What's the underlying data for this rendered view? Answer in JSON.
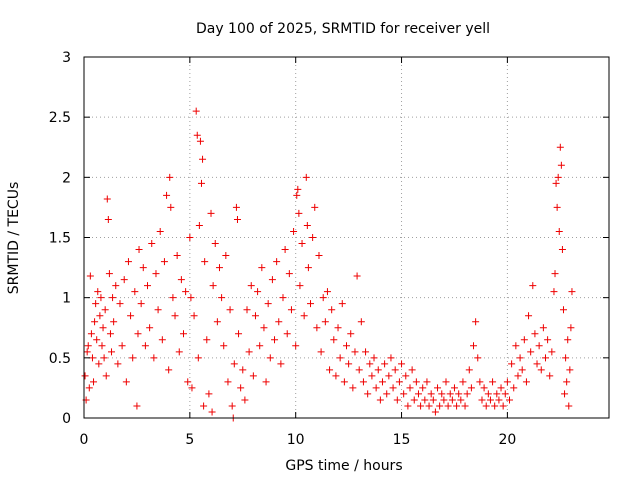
{
  "chart_data": {
    "type": "scatter",
    "title": "Day 100 of 2025, SRMTID for receiver yell",
    "xlabel": "GPS time / hours",
    "ylabel": "SRMTID / TECUs",
    "xlim": [
      0,
      24.8
    ],
    "ylim": [
      0,
      3
    ],
    "x_ticks": [
      0,
      5,
      10,
      15,
      20
    ],
    "x_tick_labels": [
      "0",
      "5",
      "10",
      "15",
      "20"
    ],
    "y_ticks": [
      0,
      0.5,
      1,
      1.5,
      2,
      2.5,
      3
    ],
    "y_tick_labels": [
      "0",
      "0.5",
      "1",
      "1.5",
      "2",
      "2.5",
      "3"
    ],
    "grid": true,
    "marker": "+",
    "color": "#ee0000",
    "series": [
      {
        "name": "SRMTID",
        "points": [
          [
            0.05,
            0.35
          ],
          [
            0.1,
            0.15
          ],
          [
            0.15,
            0.55
          ],
          [
            0.2,
            0.6
          ],
          [
            0.25,
            0.25
          ],
          [
            0.3,
            1.18
          ],
          [
            0.35,
            0.7
          ],
          [
            0.4,
            0.5
          ],
          [
            0.45,
            0.3
          ],
          [
            0.5,
            0.8
          ],
          [
            0.55,
            0.95
          ],
          [
            0.6,
            0.65
          ],
          [
            0.65,
            1.05
          ],
          [
            0.7,
            0.45
          ],
          [
            0.75,
            0.85
          ],
          [
            0.8,
            1.0
          ],
          [
            0.85,
            0.6
          ],
          [
            0.9,
            0.75
          ],
          [
            0.95,
            0.5
          ],
          [
            1.0,
            0.9
          ],
          [
            1.05,
            0.35
          ],
          [
            1.1,
            1.82
          ],
          [
            1.15,
            1.65
          ],
          [
            1.2,
            1.2
          ],
          [
            1.25,
            0.7
          ],
          [
            1.3,
            0.55
          ],
          [
            1.35,
            1.0
          ],
          [
            1.4,
            0.8
          ],
          [
            1.5,
            1.1
          ],
          [
            1.6,
            0.45
          ],
          [
            1.7,
            0.95
          ],
          [
            1.8,
            0.6
          ],
          [
            1.9,
            1.15
          ],
          [
            2.0,
            0.3
          ],
          [
            2.1,
            1.3
          ],
          [
            2.2,
            0.85
          ],
          [
            2.3,
            0.5
          ],
          [
            2.4,
            1.05
          ],
          [
            2.5,
            0.1
          ],
          [
            2.55,
            0.7
          ],
          [
            2.6,
            1.4
          ],
          [
            2.7,
            0.95
          ],
          [
            2.8,
            1.25
          ],
          [
            2.9,
            0.6
          ],
          [
            3.0,
            1.1
          ],
          [
            3.1,
            0.75
          ],
          [
            3.2,
            1.45
          ],
          [
            3.3,
            0.5
          ],
          [
            3.4,
            1.2
          ],
          [
            3.5,
            0.9
          ],
          [
            3.6,
            1.55
          ],
          [
            3.7,
            0.65
          ],
          [
            3.8,
            1.3
          ],
          [
            3.9,
            1.85
          ],
          [
            4.0,
            0.4
          ],
          [
            4.05,
            2.0
          ],
          [
            4.1,
            1.75
          ],
          [
            4.2,
            1.0
          ],
          [
            4.3,
            0.85
          ],
          [
            4.4,
            1.35
          ],
          [
            4.5,
            0.55
          ],
          [
            4.6,
            1.15
          ],
          [
            4.7,
            0.7
          ],
          [
            4.8,
            1.05
          ],
          [
            4.9,
            0.3
          ],
          [
            5.0,
            1.5
          ],
          [
            5.05,
            1.0
          ],
          [
            5.1,
            0.25
          ],
          [
            5.2,
            0.85
          ],
          [
            5.3,
            2.55
          ],
          [
            5.35,
            2.35
          ],
          [
            5.4,
            0.5
          ],
          [
            5.45,
            1.6
          ],
          [
            5.5,
            2.3
          ],
          [
            5.55,
            1.95
          ],
          [
            5.6,
            2.15
          ],
          [
            5.65,
            0.1
          ],
          [
            5.7,
            1.3
          ],
          [
            5.8,
            0.65
          ],
          [
            5.9,
            0.2
          ],
          [
            6.0,
            1.7
          ],
          [
            6.05,
            0.05
          ],
          [
            6.1,
            1.1
          ],
          [
            6.2,
            1.45
          ],
          [
            6.3,
            0.8
          ],
          [
            6.4,
            1.25
          ],
          [
            6.5,
            1.0
          ],
          [
            6.6,
            0.6
          ],
          [
            6.7,
            1.35
          ],
          [
            6.8,
            0.3
          ],
          [
            6.9,
            0.9
          ],
          [
            7.0,
            0.1
          ],
          [
            7.05,
            0.0
          ],
          [
            7.1,
            0.45
          ],
          [
            7.2,
            1.75
          ],
          [
            7.25,
            1.65
          ],
          [
            7.3,
            0.7
          ],
          [
            7.4,
            0.25
          ],
          [
            7.5,
            0.4
          ],
          [
            7.6,
            0.15
          ],
          [
            7.7,
            0.9
          ],
          [
            7.8,
            0.55
          ],
          [
            7.9,
            1.1
          ],
          [
            8.0,
            0.35
          ],
          [
            8.1,
            0.85
          ],
          [
            8.2,
            1.05
          ],
          [
            8.3,
            0.6
          ],
          [
            8.4,
            1.25
          ],
          [
            8.5,
            0.75
          ],
          [
            8.6,
            0.3
          ],
          [
            8.7,
            0.95
          ],
          [
            8.8,
            0.5
          ],
          [
            8.9,
            1.15
          ],
          [
            9.0,
            0.65
          ],
          [
            9.1,
            1.3
          ],
          [
            9.2,
            0.8
          ],
          [
            9.3,
            0.45
          ],
          [
            9.4,
            1.0
          ],
          [
            9.5,
            1.4
          ],
          [
            9.6,
            0.7
          ],
          [
            9.7,
            1.2
          ],
          [
            9.8,
            0.9
          ],
          [
            9.9,
            1.55
          ],
          [
            10.0,
            0.6
          ],
          [
            10.05,
            1.85
          ],
          [
            10.1,
            1.9
          ],
          [
            10.15,
            1.7
          ],
          [
            10.2,
            1.1
          ],
          [
            10.3,
            1.45
          ],
          [
            10.4,
            0.85
          ],
          [
            10.5,
            2.0
          ],
          [
            10.55,
            1.6
          ],
          [
            10.6,
            1.25
          ],
          [
            10.7,
            0.95
          ],
          [
            10.8,
            1.5
          ],
          [
            10.9,
            1.75
          ],
          [
            11.0,
            0.75
          ],
          [
            11.1,
            1.35
          ],
          [
            11.2,
            0.55
          ],
          [
            11.3,
            1.0
          ],
          [
            11.4,
            0.8
          ],
          [
            11.5,
            1.05
          ],
          [
            11.6,
            0.4
          ],
          [
            11.7,
            0.9
          ],
          [
            11.8,
            0.65
          ],
          [
            11.9,
            0.35
          ],
          [
            12.0,
            0.75
          ],
          [
            12.1,
            0.5
          ],
          [
            12.2,
            0.95
          ],
          [
            12.3,
            0.3
          ],
          [
            12.4,
            0.6
          ],
          [
            12.5,
            0.45
          ],
          [
            12.6,
            0.7
          ],
          [
            12.7,
            0.25
          ],
          [
            12.8,
            0.55
          ],
          [
            12.9,
            1.18
          ],
          [
            13.0,
            0.4
          ],
          [
            13.1,
            0.8
          ],
          [
            13.2,
            0.3
          ],
          [
            13.3,
            0.55
          ],
          [
            13.4,
            0.2
          ],
          [
            13.5,
            0.45
          ],
          [
            13.6,
            0.35
          ],
          [
            13.7,
            0.5
          ],
          [
            13.8,
            0.25
          ],
          [
            13.9,
            0.4
          ],
          [
            14.0,
            0.15
          ],
          [
            14.1,
            0.3
          ],
          [
            14.2,
            0.45
          ],
          [
            14.3,
            0.2
          ],
          [
            14.4,
            0.35
          ],
          [
            14.5,
            0.5
          ],
          [
            14.6,
            0.25
          ],
          [
            14.7,
            0.4
          ],
          [
            14.8,
            0.15
          ],
          [
            14.9,
            0.3
          ],
          [
            15.0,
            0.45
          ],
          [
            15.1,
            0.2
          ],
          [
            15.2,
            0.35
          ],
          [
            15.3,
            0.1
          ],
          [
            15.4,
            0.25
          ],
          [
            15.5,
            0.4
          ],
          [
            15.6,
            0.15
          ],
          [
            15.7,
            0.3
          ],
          [
            15.8,
            0.2
          ],
          [
            15.9,
            0.1
          ],
          [
            16.0,
            0.25
          ],
          [
            16.1,
            0.15
          ],
          [
            16.2,
            0.3
          ],
          [
            16.3,
            0.1
          ],
          [
            16.4,
            0.2
          ],
          [
            16.5,
            0.15
          ],
          [
            16.6,
            0.05
          ],
          [
            16.7,
            0.25
          ],
          [
            16.8,
            0.1
          ],
          [
            16.9,
            0.2
          ],
          [
            17.0,
            0.15
          ],
          [
            17.1,
            0.3
          ],
          [
            17.2,
            0.1
          ],
          [
            17.3,
            0.2
          ],
          [
            17.4,
            0.15
          ],
          [
            17.5,
            0.25
          ],
          [
            17.6,
            0.1
          ],
          [
            17.7,
            0.2
          ],
          [
            17.8,
            0.15
          ],
          [
            17.9,
            0.3
          ],
          [
            18.0,
            0.1
          ],
          [
            18.1,
            0.2
          ],
          [
            18.2,
            0.4
          ],
          [
            18.3,
            0.25
          ],
          [
            18.4,
            0.6
          ],
          [
            18.5,
            0.8
          ],
          [
            18.6,
            0.5
          ],
          [
            18.7,
            0.3
          ],
          [
            18.8,
            0.15
          ],
          [
            18.9,
            0.25
          ],
          [
            19.0,
            0.1
          ],
          [
            19.1,
            0.2
          ],
          [
            19.2,
            0.15
          ],
          [
            19.3,
            0.3
          ],
          [
            19.4,
            0.1
          ],
          [
            19.5,
            0.2
          ],
          [
            19.6,
            0.15
          ],
          [
            19.7,
            0.25
          ],
          [
            19.8,
            0.1
          ],
          [
            19.9,
            0.2
          ],
          [
            20.0,
            0.3
          ],
          [
            20.1,
            0.15
          ],
          [
            20.2,
            0.45
          ],
          [
            20.3,
            0.25
          ],
          [
            20.4,
            0.6
          ],
          [
            20.5,
            0.35
          ],
          [
            20.6,
            0.5
          ],
          [
            20.7,
            0.4
          ],
          [
            20.8,
            0.65
          ],
          [
            20.9,
            0.3
          ],
          [
            21.0,
            0.85
          ],
          [
            21.1,
            0.55
          ],
          [
            21.2,
            1.1
          ],
          [
            21.3,
            0.7
          ],
          [
            21.4,
            0.45
          ],
          [
            21.5,
            0.6
          ],
          [
            21.6,
            0.4
          ],
          [
            21.7,
            0.75
          ],
          [
            21.8,
            0.5
          ],
          [
            21.9,
            0.65
          ],
          [
            22.0,
            0.35
          ],
          [
            22.1,
            0.55
          ],
          [
            22.2,
            1.05
          ],
          [
            22.25,
            1.2
          ],
          [
            22.3,
            1.95
          ],
          [
            22.35,
            1.75
          ],
          [
            22.4,
            2.0
          ],
          [
            22.45,
            1.55
          ],
          [
            22.5,
            2.25
          ],
          [
            22.55,
            2.1
          ],
          [
            22.6,
            1.4
          ],
          [
            22.65,
            0.9
          ],
          [
            22.7,
            0.2
          ],
          [
            22.75,
            0.5
          ],
          [
            22.8,
            0.3
          ],
          [
            22.85,
            0.65
          ],
          [
            22.9,
            0.1
          ],
          [
            22.95,
            0.4
          ],
          [
            23.0,
            0.75
          ],
          [
            23.05,
            1.05
          ]
        ]
      }
    ]
  }
}
